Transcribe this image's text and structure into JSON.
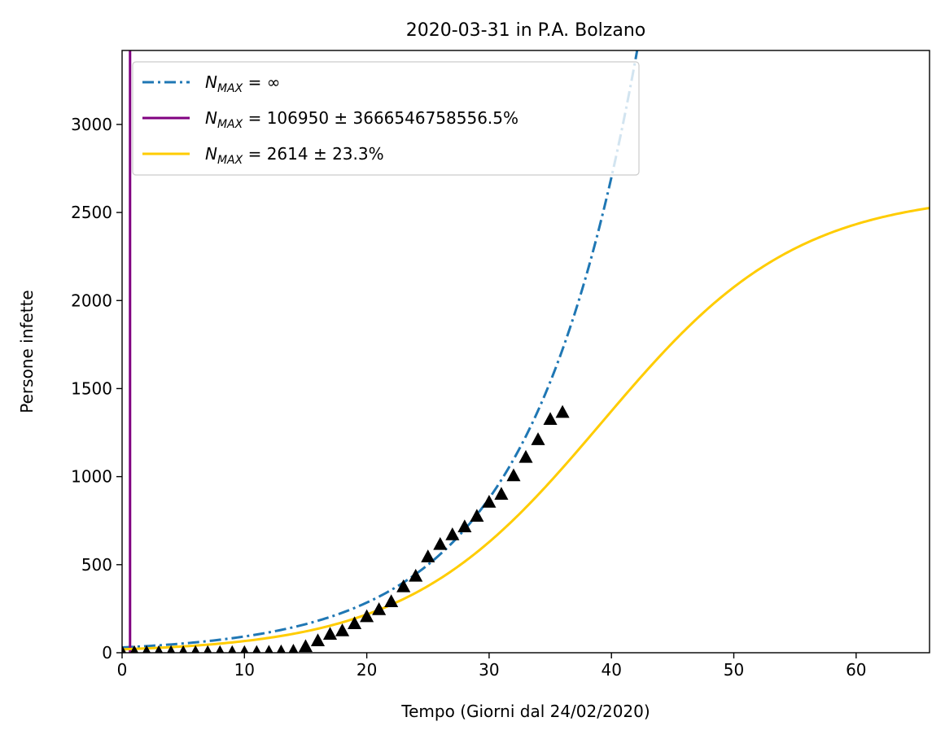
{
  "chart_data": {
    "type": "line",
    "title": "2020-03-31 in P.A. Bolzano",
    "xlabel": "Tempo (Giorni dal 24/02/2020)",
    "ylabel": "Persone infette",
    "xlim": [
      0,
      66
    ],
    "ylim": [
      0,
      3420
    ],
    "x_ticks": [
      0,
      10,
      20,
      30,
      40,
      50,
      60
    ],
    "y_ticks": [
      0,
      500,
      1000,
      1500,
      2000,
      2500,
      3000
    ],
    "grid": false,
    "legend_position": "upper-left",
    "series": [
      {
        "name_prefix": "N",
        "name_sub": "MAX",
        "name_rest": " = ∞",
        "style": "dashdot",
        "color": "#1f77b4",
        "model": "exponential",
        "params": {
          "a": 30,
          "k": 0.1125
        },
        "x": [
          0,
          5,
          10,
          15,
          20,
          25,
          30,
          35,
          40,
          43
        ],
        "y": [
          30,
          53,
          92,
          163,
          285,
          503,
          880,
          1550,
          2700,
          3420
        ]
      },
      {
        "name_prefix": "N",
        "name_sub": "MAX",
        "name_rest": " = 106950 ± 3666546758556.5%",
        "style": "solid",
        "color": "#800080",
        "model": "vertical",
        "params": {
          "x0": 0.65
        },
        "x": [
          0.65,
          0.65
        ],
        "y": [
          0,
          3420
        ]
      },
      {
        "name_prefix": "N",
        "name_sub": "MAX",
        "name_rest": " = 2614 ± 23.3%",
        "style": "solid",
        "color": "#ffcc00",
        "model": "logistic",
        "params": {
          "L": 2614,
          "k": 0.125,
          "x0": 39.2
        },
        "x": [
          0,
          10,
          20,
          30,
          35,
          40,
          45,
          50,
          55,
          60,
          66
        ],
        "y": [
          20,
          67,
          217,
          625,
          970,
          1355,
          1750,
          2070,
          2300,
          2420,
          2480
        ]
      }
    ],
    "observed": {
      "marker": "triangle",
      "color": "#000000",
      "x": [
        0,
        1,
        2,
        3,
        4,
        5,
        6,
        7,
        8,
        9,
        10,
        11,
        12,
        13,
        14,
        15,
        16,
        17,
        18,
        19,
        20,
        21,
        22,
        23,
        24,
        25,
        26,
        27,
        28,
        29,
        30,
        31,
        32,
        33,
        34,
        35,
        36
      ],
      "y": [
        1,
        1,
        1,
        1,
        1,
        1,
        1,
        1,
        1,
        1,
        1,
        2,
        3,
        5,
        9,
        35,
        68,
        105,
        125,
        165,
        205,
        245,
        290,
        375,
        435,
        545,
        615,
        670,
        715,
        775,
        855,
        900,
        1005,
        1110,
        1210,
        1325,
        1365
      ]
    }
  }
}
